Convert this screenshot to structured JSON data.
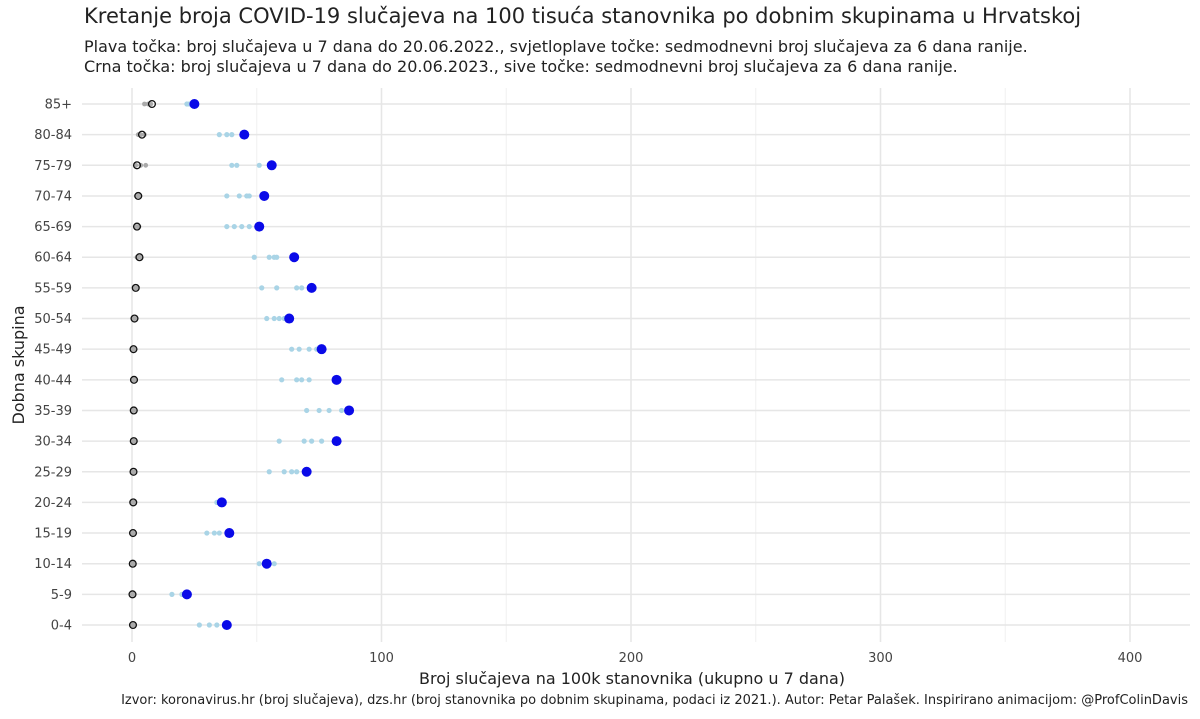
{
  "chart_data": {
    "type": "scatter",
    "title": "Kretanje broja COVID-19 slučajeva na 100 tisuća stanovnika po dobnim skupinama u Hrvatskoj",
    "subtitle_lines": [
      "Plava točka: broj slučajeva u 7 dana do 20.06.2022., svjetloplave točke: sedmodnevni broj slučajeva za 6 dana ranije.",
      "Crna točka: broj slučajeva u 7 dana do 20.06.2023., sive točke: sedmodnevni broj slučajeva za 6 dana ranije."
    ],
    "xlabel": "Broj slučajeva na 100k stanovnika (ukupno u 7 dana)",
    "ylabel": "Dobna skupina",
    "caption": "Izvor: koronavirus.hr (broj slučajeva), dzs.hr (broj stanovnika po dobnim skupinama, podaci iz 2021.). Autor: Petar Palašek. Inspirirano animacijom: @ProfColinDavis",
    "xlim": [
      0,
      420
    ],
    "x_ticks": [
      0,
      100,
      200,
      300,
      400
    ],
    "grid": true,
    "categories": [
      "0-4",
      "5-9",
      "10-14",
      "15-19",
      "20-24",
      "25-29",
      "30-34",
      "35-39",
      "40-44",
      "45-49",
      "50-54",
      "55-59",
      "60-64",
      "65-69",
      "70-74",
      "75-79",
      "80-84",
      "85+"
    ],
    "series": [
      {
        "values_2022": [
          38,
          22,
          54,
          39,
          36,
          70,
          82,
          87,
          82,
          76,
          63,
          72,
          65,
          51,
          53,
          56,
          45,
          25
        ],
        "values_2022_prev": [
          [
            27,
            31,
            34
          ],
          [
            16,
            20,
            23
          ],
          [
            51,
            53,
            57
          ],
          [
            30,
            33,
            35
          ],
          [
            34,
            36,
            37
          ],
          [
            55,
            61,
            64,
            66
          ],
          [
            59,
            69,
            72,
            76
          ],
          [
            70,
            75,
            79,
            84
          ],
          [
            60,
            66,
            68,
            71
          ],
          [
            64,
            67,
            71,
            74
          ],
          [
            54,
            57,
            59,
            61
          ],
          [
            52,
            58,
            66,
            68
          ],
          [
            49,
            55,
            57,
            58
          ],
          [
            38,
            41,
            44,
            47
          ],
          [
            38,
            43,
            46,
            47
          ],
          [
            40,
            42,
            51
          ],
          [
            35,
            38,
            40
          ],
          [
            22,
            23
          ]
        ],
        "values_2023": [
          0.4,
          0.2,
          0.3,
          0.4,
          0.5,
          0.6,
          0.7,
          0.7,
          0.8,
          0.6,
          1.0,
          1.5,
          3.0,
          2.0,
          2.5,
          2.0,
          4.0,
          8.0
        ],
        "values_2023_prev": [
          [
            0.2,
            0.5,
            0.7
          ],
          [
            0.1,
            0.3,
            0.4
          ],
          [
            0.2,
            0.4,
            0.5
          ],
          [
            0.2,
            0.4,
            0.6
          ],
          [
            0.3,
            0.6,
            0.8
          ],
          [
            0.3,
            0.5,
            0.8
          ],
          [
            0.4,
            0.6,
            0.9
          ],
          [
            0.4,
            0.6,
            0.8
          ],
          [
            0.5,
            0.8,
            1.0
          ],
          [
            0.3,
            0.6,
            0.8
          ],
          [
            0.6,
            0.9,
            1.2
          ],
          [
            1.0,
            1.4,
            2.0
          ],
          [
            2.0,
            2.8,
            3.6
          ],
          [
            1.5,
            2.2,
            2.8
          ],
          [
            1.8,
            2.6,
            3.2
          ],
          [
            1.5,
            3.5,
            5.5
          ],
          [
            2.5,
            3.5,
            5.0
          ],
          [
            5.0,
            6.5,
            7.5
          ]
        ]
      }
    ],
    "colors": {
      "current_2022": "#0a0ae8",
      "previous_2022": "#a9d4e6",
      "current_2023": "#111111",
      "previous_2023": "#aaaaaa",
      "grid": "#e6e6e6"
    }
  }
}
